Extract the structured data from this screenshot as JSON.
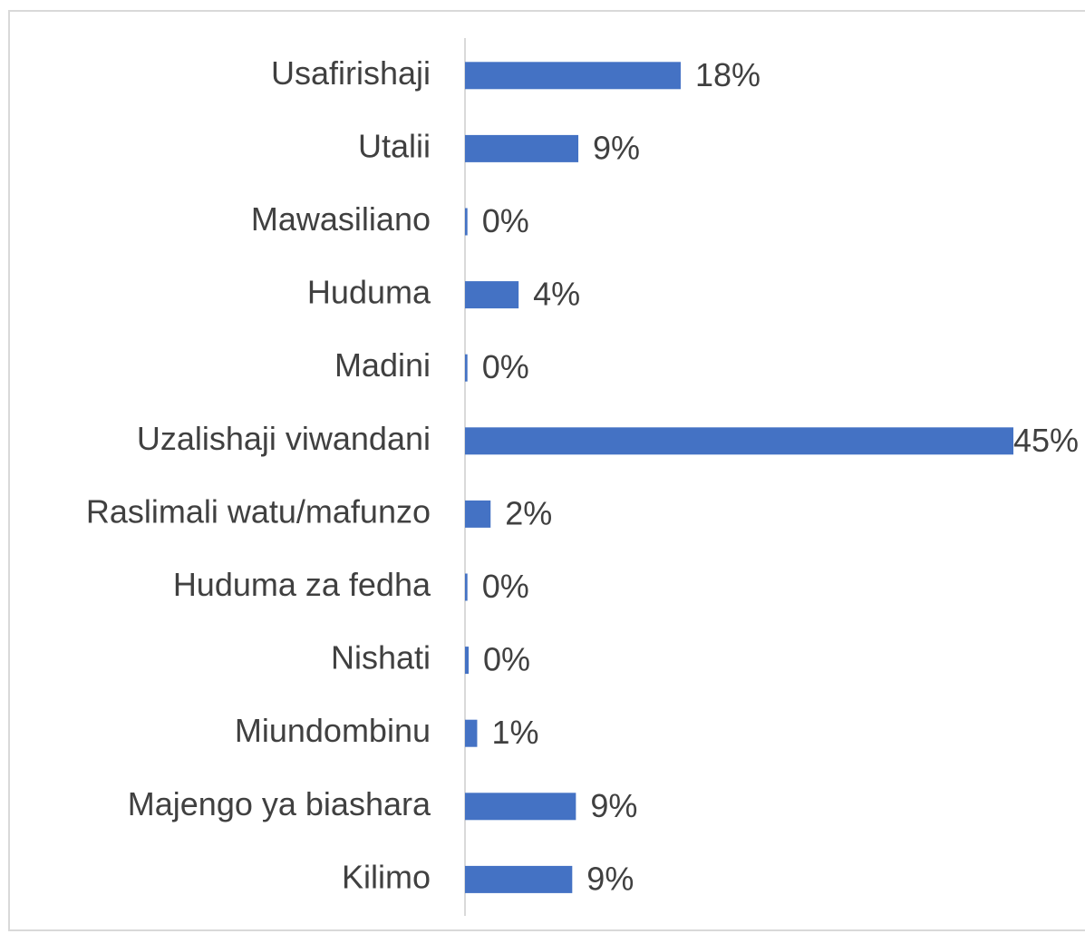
{
  "chart_data": {
    "type": "bar",
    "orientation": "horizontal",
    "categories": [
      "Usafirishaji",
      "Utalii",
      "Mawasiliano",
      "Huduma",
      "Madini",
      "Uzalishaji viwandani",
      "Raslimali watu/mafunzo",
      "Huduma za fedha",
      "Nishati",
      "Miundombinu",
      "Majengo ya biashara",
      "Kilimo"
    ],
    "values": [
      17.7,
      9.3,
      0.2,
      4.4,
      0.2,
      45,
      2.1,
      0.2,
      0.3,
      1.0,
      9.1,
      8.8
    ],
    "value_labels": [
      "18%",
      "9%",
      "0%",
      "4%",
      "0%",
      "45%",
      "2%",
      "0%",
      "0%",
      "1%",
      "9%",
      "9%"
    ],
    "color": "#4472c4"
  }
}
